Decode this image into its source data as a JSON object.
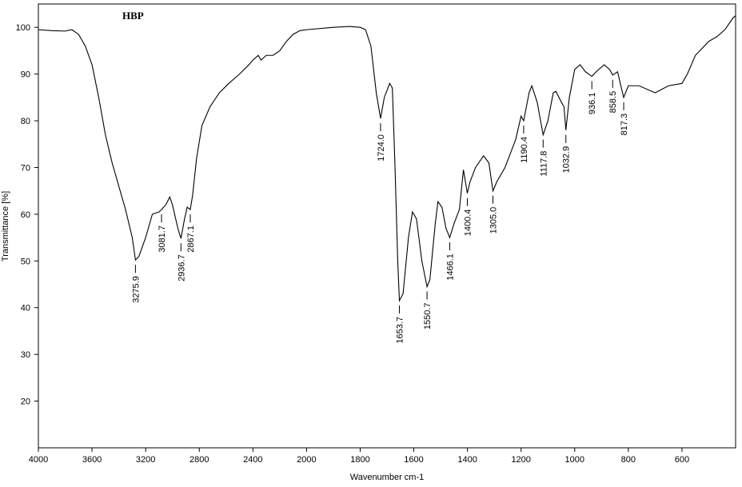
{
  "chart_data": {
    "type": "line",
    "title": "HBP",
    "xlabel": "Wavenumber cm-1",
    "ylabel": "Transmittance [%]",
    "color": "#000000",
    "xlim": [
      4000,
      400
    ],
    "x_scale_change": 2000,
    "x_scale_factor": 2,
    "xticks": [
      4000,
      3600,
      3200,
      2800,
      2400,
      2000,
      1800,
      1600,
      1400,
      1200,
      1000,
      800,
      600
    ],
    "ylim": [
      10,
      105
    ],
    "yticks": [
      20,
      30,
      40,
      50,
      60,
      70,
      80,
      90,
      100
    ],
    "x": [
      4000,
      3900,
      3800,
      3750,
      3700,
      3650,
      3600,
      3550,
      3500,
      3450,
      3400,
      3350,
      3300,
      3275.9,
      3250,
      3200,
      3150,
      3100,
      3081.7,
      3050,
      3020,
      3000,
      2960,
      2936.7,
      2910,
      2890,
      2867.1,
      2850,
      2820,
      2780,
      2720,
      2650,
      2580,
      2500,
      2430,
      2400,
      2380,
      2360,
      2340,
      2300,
      2250,
      2200,
      2150,
      2100,
      2050,
      2000,
      1900,
      1840,
      1800,
      1780,
      1760,
      1740,
      1724.0,
      1710,
      1690,
      1680,
      1670,
      1660,
      1653.7,
      1640,
      1620,
      1605,
      1590,
      1570,
      1550.7,
      1540,
      1520,
      1510,
      1495,
      1480,
      1466.1,
      1450,
      1430,
      1415,
      1400.4,
      1390,
      1370,
      1340,
      1320,
      1305.0,
      1290,
      1260,
      1220,
      1200,
      1190.4,
      1170,
      1160,
      1140,
      1117.8,
      1100,
      1080,
      1070,
      1050,
      1040,
      1032.9,
      1020,
      1000,
      980,
      960,
      936.1,
      920,
      890,
      870,
      858.5,
      840,
      830,
      817.3,
      800,
      760,
      720,
      700,
      650,
      600,
      580,
      550,
      500,
      470,
      440,
      410,
      400
    ],
    "values": [
      99.5,
      99.3,
      99.2,
      99.5,
      98.5,
      96,
      92,
      85,
      77,
      71,
      66,
      61,
      55,
      50.2,
      51,
      55,
      60,
      60.5,
      61,
      62,
      63.7,
      62,
      57,
      54.8,
      59,
      61.5,
      61,
      64,
      72,
      79,
      83,
      86,
      88,
      90,
      92,
      93,
      93.5,
      94,
      93,
      94,
      94,
      95,
      97,
      98.5,
      99.3,
      99.5,
      100,
      100.2,
      100,
      99.5,
      96,
      86,
      80.5,
      85,
      88,
      87,
      70,
      50,
      41.5,
      43,
      55,
      60.5,
      59,
      50,
      44.5,
      46,
      58,
      62.7,
      61.5,
      57,
      55,
      58,
      61,
      69.5,
      64.5,
      67,
      70,
      72.5,
      71,
      65,
      67,
      70,
      76,
      81,
      80,
      86,
      87.5,
      84,
      77,
      80,
      86,
      86.3,
      84,
      83,
      78,
      85,
      91,
      92,
      90.5,
      89.5,
      90.5,
      92,
      91,
      89.8,
      90.5,
      88,
      85,
      87.5,
      87.5,
      86.5,
      86,
      87.5,
      88,
      90,
      94,
      97,
      98,
      99.5,
      102,
      102.5
    ],
    "peaks": [
      {
        "value": 3275.9,
        "label": "3275.9"
      },
      {
        "value": 3081.7,
        "label": "3081.7"
      },
      {
        "value": 2936.7,
        "label": "2936.7"
      },
      {
        "value": 2867.1,
        "label": "2867.1"
      },
      {
        "value": 1724.0,
        "label": "1724.0"
      },
      {
        "value": 1653.7,
        "label": "1653.7"
      },
      {
        "value": 1550.7,
        "label": "1550.7"
      },
      {
        "value": 1466.1,
        "label": "1466.1"
      },
      {
        "value": 1400.4,
        "label": "1400.4"
      },
      {
        "value": 1305.0,
        "label": "1305.0"
      },
      {
        "value": 1190.4,
        "label": "1190.4"
      },
      {
        "value": 1117.8,
        "label": "1117.8"
      },
      {
        "value": 1032.9,
        "label": "1032.9"
      },
      {
        "value": 936.1,
        "label": "936.1"
      },
      {
        "value": 858.5,
        "label": "858.5"
      },
      {
        "value": 817.3,
        "label": "817.3"
      }
    ]
  }
}
